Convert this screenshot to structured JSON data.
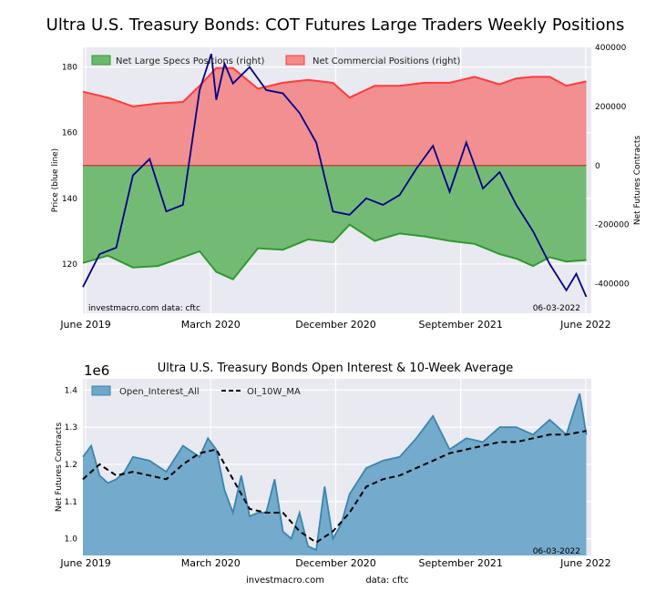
{
  "chart_data": [
    {
      "type": "area",
      "title": "Ultra U.S. Treasury Bonds: COT Futures Large Traders Weekly Positions",
      "ylabel": "Price (blue line)",
      "ylabel_right": "Net Futures Contracts",
      "ylim": [
        105,
        186
      ],
      "ylim_right": [
        -500000,
        400000
      ],
      "y_ticks": [
        "120",
        "140",
        "160",
        "180"
      ],
      "y_ticks_right": [
        "-400000",
        "-200000",
        "0",
        "200000",
        "400000"
      ],
      "x_ticks": [
        "June 2019",
        "March 2020",
        "December 2020",
        "September 2021",
        "June 2022"
      ],
      "x_range": [
        2019.4,
        2022.45
      ],
      "legend": [
        "Net Large Specs Positions (right)",
        "Net Commercial Positions (right)"
      ],
      "source_left": "investmacro.com    data: cftc",
      "date_label": "06-03-2022",
      "colors": {
        "specs": "#2e9a2e",
        "commercial": "#ff3b3b",
        "price": "#00008b"
      },
      "series": [
        {
          "name": "Net Large Specs Positions (right)",
          "x": [
            2019.4,
            2019.55,
            2019.7,
            2019.85,
            2020.0,
            2020.1,
            2020.2,
            2020.3,
            2020.45,
            2020.6,
            2020.75,
            2020.9,
            2021.0,
            2021.15,
            2021.3,
            2021.45,
            2021.6,
            2021.75,
            2021.9,
            2022.0,
            2022.1,
            2022.2,
            2022.3,
            2022.42
          ],
          "values": [
            -330000,
            -305000,
            -345000,
            -340000,
            -310000,
            -290000,
            -360000,
            -385000,
            -280000,
            -285000,
            -250000,
            -260000,
            -200000,
            -255000,
            -230000,
            -240000,
            -255000,
            -265000,
            -300000,
            -315000,
            -340000,
            -310000,
            -325000,
            -320000
          ]
        },
        {
          "name": "Net Commercial Positions (right)",
          "x": [
            2019.4,
            2019.55,
            2019.7,
            2019.85,
            2020.0,
            2020.1,
            2020.2,
            2020.3,
            2020.45,
            2020.6,
            2020.75,
            2020.9,
            2021.0,
            2021.15,
            2021.3,
            2021.45,
            2021.6,
            2021.75,
            2021.9,
            2022.0,
            2022.1,
            2022.2,
            2022.3,
            2022.42
          ],
          "values": [
            250000,
            230000,
            200000,
            210000,
            215000,
            270000,
            330000,
            330000,
            260000,
            280000,
            290000,
            280000,
            230000,
            270000,
            270000,
            280000,
            280000,
            300000,
            275000,
            295000,
            300000,
            300000,
            270000,
            285000
          ]
        },
        {
          "name": "Price (blue line)",
          "x": [
            2019.4,
            2019.5,
            2019.6,
            2019.7,
            2019.8,
            2019.9,
            2020.0,
            2020.1,
            2020.17,
            2020.2,
            2020.25,
            2020.3,
            2020.4,
            2020.5,
            2020.6,
            2020.7,
            2020.8,
            2020.9,
            2021.0,
            2021.1,
            2021.2,
            2021.3,
            2021.4,
            2021.5,
            2021.6,
            2021.7,
            2021.8,
            2021.9,
            2022.0,
            2022.1,
            2022.2,
            2022.3,
            2022.36,
            2022.42
          ],
          "values": [
            113,
            123,
            125,
            147,
            152,
            136,
            138,
            173,
            184,
            170,
            181,
            175,
            180,
            173,
            172,
            166,
            157,
            136,
            135,
            140,
            138,
            141,
            149,
            156,
            142,
            157,
            143,
            148,
            138,
            130,
            120,
            112,
            117,
            110
          ]
        }
      ]
    },
    {
      "type": "area",
      "title": "Ultra U.S. Treasury Bonds Open Interest & 10-Week Average",
      "ylabel": "Net Futures Contracts",
      "scale_label": "1e6",
      "ylim": [
        0.955,
        1.43
      ],
      "y_ticks": [
        "1.0",
        "1.1",
        "1.2",
        "1.3",
        "1.4"
      ],
      "x_ticks": [
        "June 2019",
        "March 2020",
        "December 2020",
        "September 2021",
        "June 2022"
      ],
      "x_range": [
        2019.4,
        2022.45
      ],
      "legend": [
        "Open_Interest_All",
        "OI_10W_MA"
      ],
      "date_label": "06-03-2022",
      "colors": {
        "oi": "#3a86b0",
        "ma": "#000000"
      },
      "series": [
        {
          "name": "Open_Interest_All",
          "x": [
            2019.4,
            2019.45,
            2019.5,
            2019.55,
            2019.6,
            2019.65,
            2019.7,
            2019.8,
            2019.9,
            2020.0,
            2020.1,
            2020.15,
            2020.2,
            2020.25,
            2020.3,
            2020.35,
            2020.4,
            2020.45,
            2020.5,
            2020.55,
            2020.6,
            2020.65,
            2020.7,
            2020.75,
            2020.8,
            2020.85,
            2020.9,
            2020.95,
            2021.0,
            2021.1,
            2021.2,
            2021.3,
            2021.4,
            2021.5,
            2021.6,
            2021.7,
            2021.8,
            2021.9,
            2022.0,
            2022.1,
            2022.2,
            2022.3,
            2022.35,
            2022.38,
            2022.42
          ],
          "values": [
            1.22,
            1.25,
            1.17,
            1.15,
            1.16,
            1.18,
            1.22,
            1.21,
            1.18,
            1.25,
            1.22,
            1.27,
            1.24,
            1.13,
            1.07,
            1.17,
            1.06,
            1.07,
            1.07,
            1.16,
            1.02,
            1.0,
            1.07,
            0.98,
            0.97,
            1.14,
            1.0,
            1.04,
            1.12,
            1.19,
            1.21,
            1.22,
            1.27,
            1.33,
            1.24,
            1.27,
            1.26,
            1.3,
            1.3,
            1.28,
            1.32,
            1.28,
            1.35,
            1.39,
            1.28
          ]
        },
        {
          "name": "OI_10W_MA",
          "x": [
            2019.4,
            2019.5,
            2019.6,
            2019.7,
            2019.8,
            2019.9,
            2020.0,
            2020.1,
            2020.2,
            2020.3,
            2020.4,
            2020.5,
            2020.6,
            2020.7,
            2020.8,
            2020.9,
            2021.0,
            2021.1,
            2021.2,
            2021.3,
            2021.4,
            2021.5,
            2021.6,
            2021.7,
            2021.8,
            2021.9,
            2022.0,
            2022.1,
            2022.2,
            2022.3,
            2022.42
          ],
          "values": [
            1.16,
            1.2,
            1.17,
            1.18,
            1.17,
            1.16,
            1.2,
            1.23,
            1.24,
            1.16,
            1.08,
            1.07,
            1.07,
            1.02,
            0.99,
            1.02,
            1.07,
            1.14,
            1.16,
            1.17,
            1.19,
            1.21,
            1.23,
            1.24,
            1.25,
            1.26,
            1.26,
            1.27,
            1.28,
            1.28,
            1.29
          ]
        }
      ]
    }
  ],
  "footer": {
    "site": "investmacro.com",
    "data": "data: cftc"
  }
}
